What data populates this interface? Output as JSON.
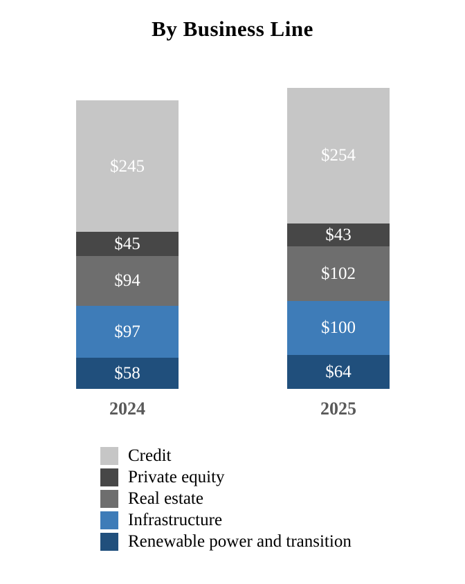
{
  "title": "By Business Line",
  "chart_data": {
    "type": "bar",
    "stacked": true,
    "orientation": "vertical",
    "title": "By Business Line",
    "xlabel": "",
    "ylabel": "",
    "axis_lines": "none",
    "grid": false,
    "legend_position": "bottom-left",
    "value_prefix": "$",
    "categories": [
      "2024",
      "2025"
    ],
    "totals": [
      539,
      563
    ],
    "stack_order": "top-to-bottom",
    "series": [
      {
        "name": "Credit",
        "color": "#c6c6c6",
        "values": [
          245,
          254
        ],
        "labels": [
          "$245",
          "$254"
        ]
      },
      {
        "name": "Private equity",
        "color": "#474747",
        "values": [
          45,
          43
        ],
        "labels": [
          "$45",
          "$43"
        ]
      },
      {
        "name": "Real estate",
        "color": "#6e6e6e",
        "values": [
          94,
          102
        ],
        "labels": [
          "$94",
          "$102"
        ]
      },
      {
        "name": "Infrastructure",
        "color": "#3e7cb8",
        "values": [
          97,
          100
        ],
        "labels": [
          "$97",
          "$100"
        ]
      },
      {
        "name": "Renewable power and transition",
        "color": "#204f7c",
        "values": [
          58,
          64
        ],
        "labels": [
          "$58",
          "$64"
        ]
      }
    ],
    "label_color": "#ffffff",
    "category_label_color": "#595959",
    "title_color": "#000000"
  }
}
